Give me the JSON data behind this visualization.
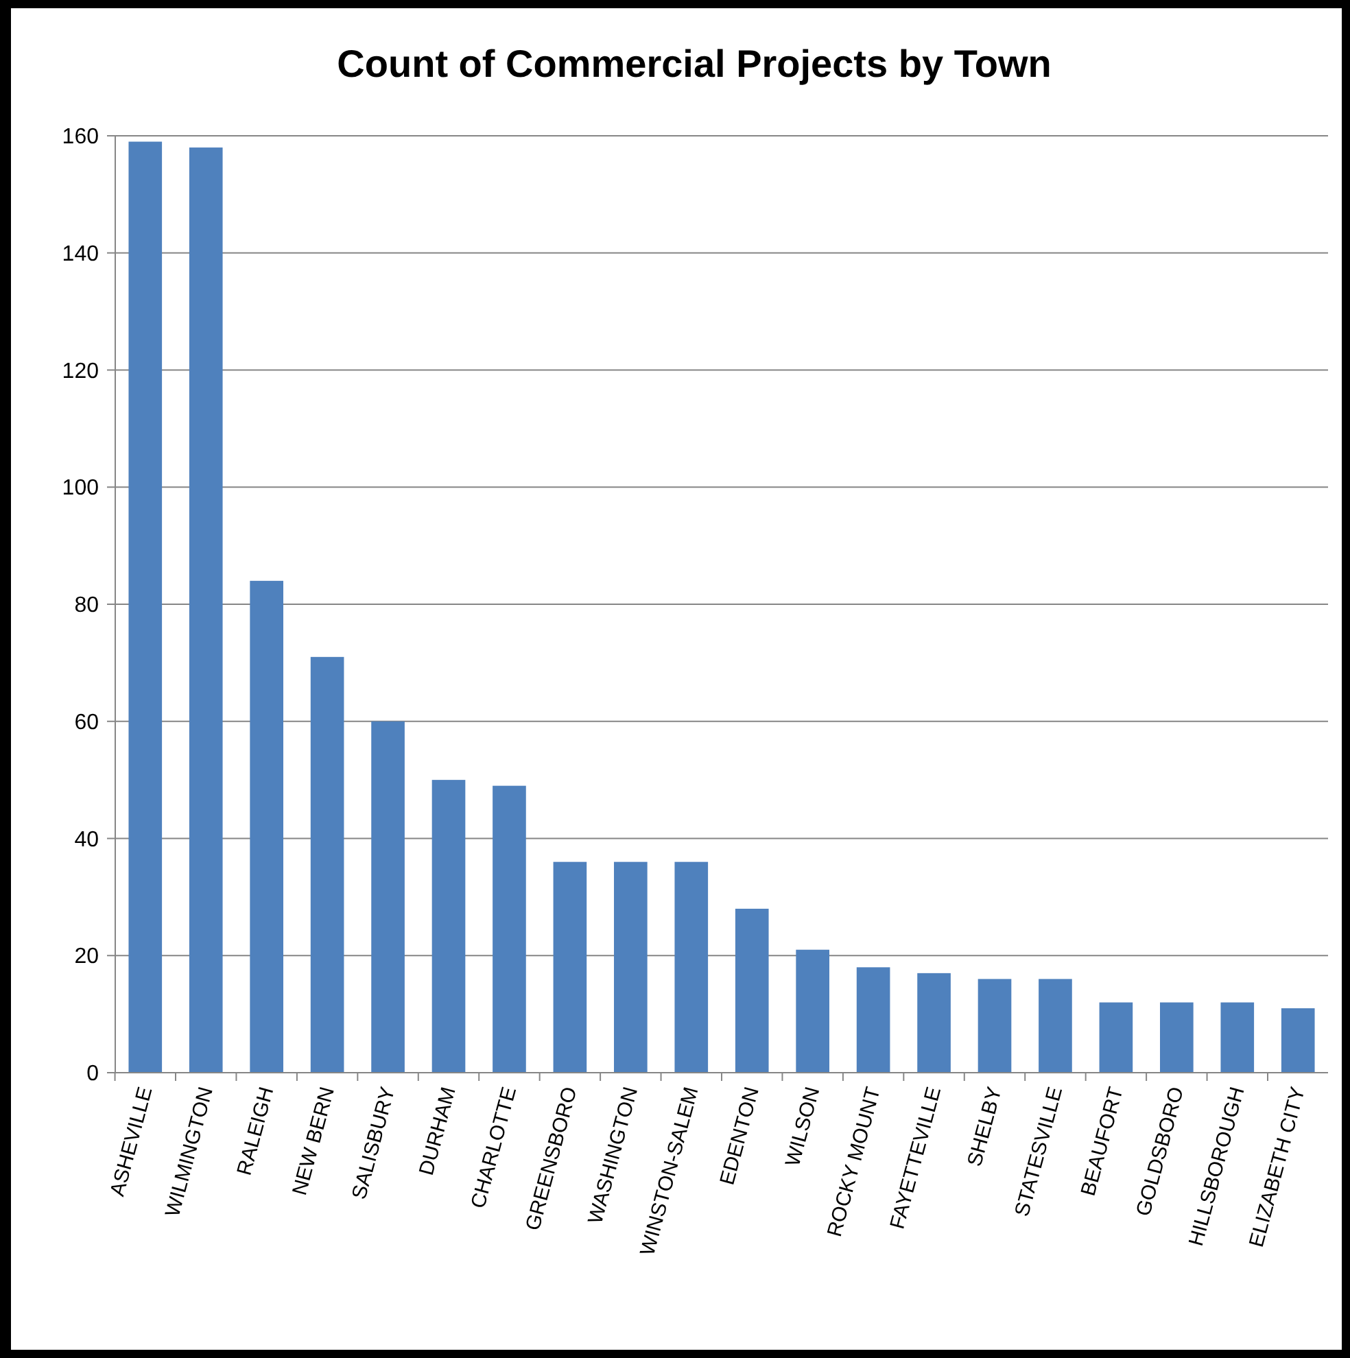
{
  "chart_data": {
    "type": "bar",
    "title": "Count of Commercial Projects by Town",
    "categories": [
      "ASHEVILLE",
      "WILMINGTON",
      "RALEIGH",
      "NEW BERN",
      "SALISBURY",
      "DURHAM",
      "CHARLOTTE",
      "GREENSBORO",
      "WASHINGTON",
      "WINSTON-SALEM",
      "EDENTON",
      "WILSON",
      "ROCKY MOUNT",
      "FAYETTEVILLE",
      "SHELBY",
      "STATESVILLE",
      "BEAUFORT",
      "GOLDSBORO",
      "HILLSBOROUGH",
      "ELIZABETH CITY"
    ],
    "values": [
      159,
      158,
      84,
      71,
      60,
      50,
      49,
      36,
      36,
      36,
      28,
      21,
      18,
      17,
      16,
      16,
      12,
      12,
      12,
      11
    ],
    "color": "#4f81bd",
    "ylim": [
      0,
      160
    ],
    "yticks": [
      0,
      20,
      40,
      60,
      80,
      100,
      120,
      140,
      160
    ],
    "grid": "y"
  }
}
